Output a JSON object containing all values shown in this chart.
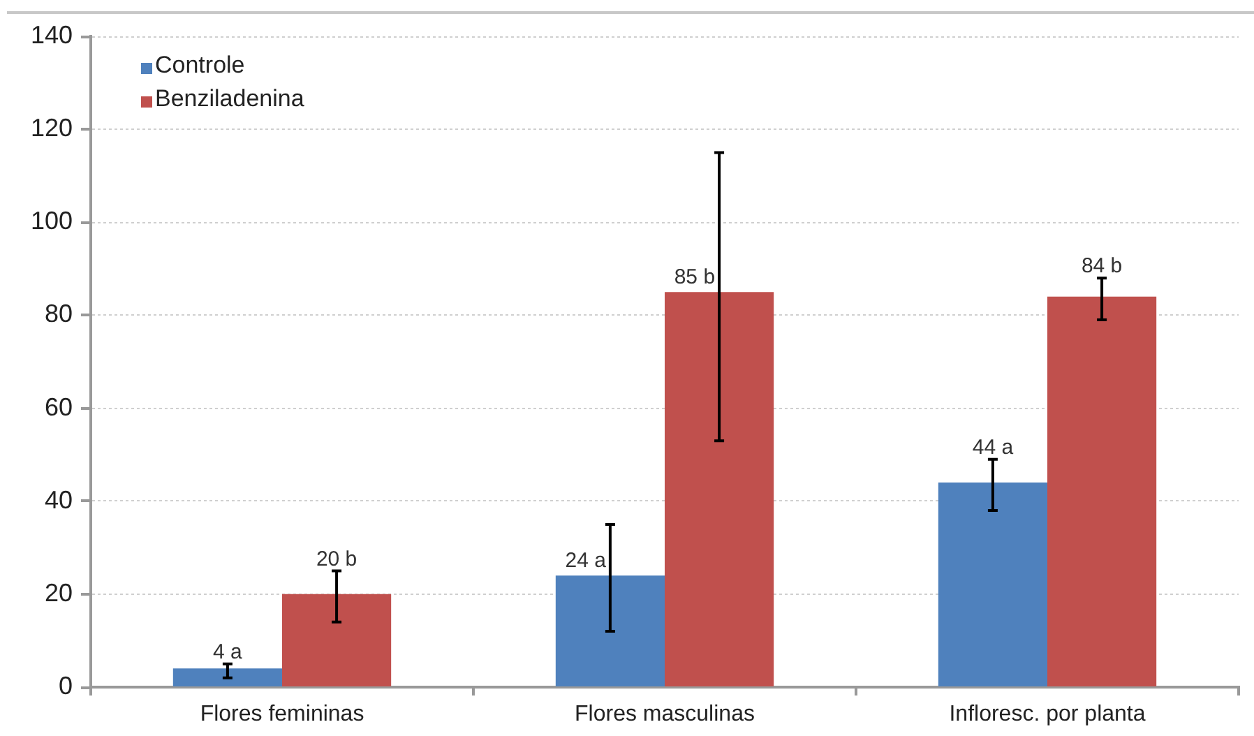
{
  "chart_data": {
    "type": "bar",
    "categories": [
      "Flores femininas",
      "Flores masculinas",
      "Infloresc. por planta"
    ],
    "series": [
      {
        "name": "Controle",
        "color": "#4f81bd",
        "values": [
          4,
          24,
          44
        ],
        "errors": [
          [
            2,
            5
          ],
          [
            12,
            35
          ],
          [
            38,
            49
          ]
        ],
        "value_labels": [
          "4 a",
          "24 a",
          "44 a"
        ]
      },
      {
        "name": "Benziladenina",
        "color": "#c0504d",
        "values": [
          20,
          85,
          84
        ],
        "errors": [
          [
            14,
            25
          ],
          [
            53,
            115
          ],
          [
            79,
            88
          ]
        ],
        "value_labels": [
          "20 b",
          "85 b",
          "84 b"
        ]
      }
    ],
    "ylim": [
      0,
      140
    ],
    "yticks": [
      0,
      20,
      40,
      60,
      80,
      100,
      120,
      140
    ],
    "grid": "y",
    "legend": "top left"
  }
}
